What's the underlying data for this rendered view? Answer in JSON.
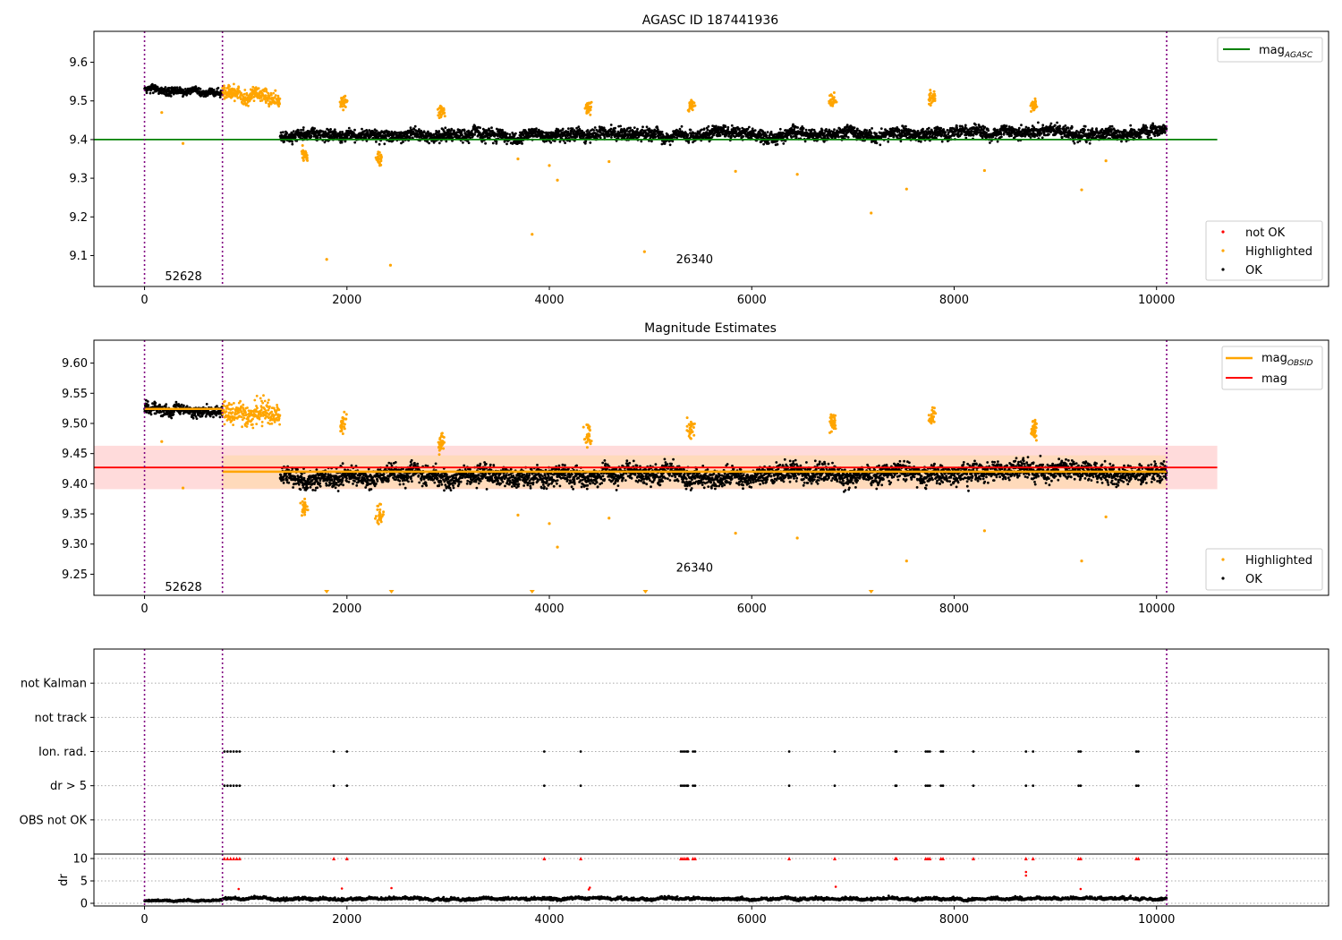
{
  "figure": {
    "colors": {
      "ok": "#000000",
      "highlighted": "#ffa500",
      "not_ok": "#ff0000",
      "agasc_line": "#008000",
      "obsid_line": "#ffa500",
      "mag_line": "#ff0000",
      "obs_boundary": "#800080",
      "mag_band": "#ffcccc",
      "obsid_band": "#ffd9b3",
      "grid": "#aaaaaa"
    }
  },
  "chart_data": [
    {
      "type": "scatter",
      "title": "AGASC ID 187441936",
      "xlim": [
        -500,
        11700
      ],
      "ylim": [
        9.02,
        9.68
      ],
      "xticks": [
        0,
        2000,
        4000,
        6000,
        8000,
        10000
      ],
      "xtick_labels": [
        "0",
        "2000",
        "4000",
        "6000",
        "8000",
        "10000"
      ],
      "yticks": [
        9.1,
        9.2,
        9.3,
        9.4,
        9.5,
        9.6
      ],
      "ytick_labels": [
        "9.1",
        "9.2",
        "9.3",
        "9.4",
        "9.5",
        "9.6"
      ],
      "obs_boundaries": [
        0,
        770,
        10100
      ],
      "obs_labels": [
        {
          "text": "52628",
          "x": 385,
          "y": 9.045
        },
        {
          "text": "26340",
          "x": 5435,
          "y": 9.09
        }
      ],
      "lines": [
        {
          "name": "mag_AGASC",
          "y": 9.4,
          "x": [
            -500,
            10600
          ]
        }
      ],
      "series": [
        {
          "name": "OK",
          "segments": [
            {
              "x": [
                0,
                770
              ],
              "y_start": 9.53,
              "y_end": 9.52,
              "spread": 0.012
            },
            {
              "x": [
                1340,
                10100
              ],
              "y_start": 9.41,
              "y_end": 9.42,
              "spread": 0.02
            }
          ]
        },
        {
          "name": "Highlighted",
          "segments": [
            {
              "x": [
                770,
                1340
              ],
              "y_start": 9.52,
              "y_end": 9.51,
              "spread": 0.025
            }
          ]
        },
        {
          "name": "not OK",
          "segments": []
        }
      ],
      "highlighted_clusters": [
        {
          "x": 1580,
          "y": 9.36
        },
        {
          "x": 1960,
          "y": 9.5
        },
        {
          "x": 2320,
          "y": 9.35
        },
        {
          "x": 2930,
          "y": 9.47
        },
        {
          "x": 4380,
          "y": 9.48
        },
        {
          "x": 5400,
          "y": 9.49
        },
        {
          "x": 6800,
          "y": 9.5
        },
        {
          "x": 7780,
          "y": 9.51
        },
        {
          "x": 8790,
          "y": 9.49
        }
      ],
      "highlighted_outliers": [
        {
          "x": 1800,
          "y": 9.09
        },
        {
          "x": 2430,
          "y": 9.075
        },
        {
          "x": 3830,
          "y": 9.155
        },
        {
          "x": 4940,
          "y": 9.11
        },
        {
          "x": 7180,
          "y": 9.21
        },
        {
          "x": 7530,
          "y": 9.272
        },
        {
          "x": 9260,
          "y": 9.27
        },
        {
          "x": 4080,
          "y": 9.295
        },
        {
          "x": 8300,
          "y": 9.32
        },
        {
          "x": 5840,
          "y": 9.318
        },
        {
          "x": 6450,
          "y": 9.31
        },
        {
          "x": 9500,
          "y": 9.345
        },
        {
          "x": 170,
          "y": 9.47
        },
        {
          "x": 380,
          "y": 9.39
        },
        {
          "x": 4590,
          "y": 9.343
        },
        {
          "x": 3690,
          "y": 9.35
        },
        {
          "x": 4000,
          "y": 9.333
        }
      ],
      "legend_lines": [
        "mag_AGASC"
      ],
      "legend_lines_base": "mag",
      "legend_lines_sub": "AGASC",
      "legend_points": [
        "not OK",
        "Highlighted",
        "OK"
      ]
    },
    {
      "type": "scatter",
      "title": "Magnitude Estimates",
      "xlim": [
        -500,
        11700
      ],
      "ylim": [
        9.215,
        9.638
      ],
      "xticks": [
        0,
        2000,
        4000,
        6000,
        8000,
        10000
      ],
      "xtick_labels": [
        "0",
        "2000",
        "4000",
        "6000",
        "8000",
        "10000"
      ],
      "yticks": [
        9.25,
        9.3,
        9.35,
        9.4,
        9.45,
        9.5,
        9.55,
        9.6
      ],
      "ytick_labels": [
        "9.25",
        "9.30",
        "9.35",
        "9.40",
        "9.45",
        "9.50",
        "9.55",
        "9.60"
      ],
      "obs_boundaries": [
        0,
        770,
        10100
      ],
      "obs_labels": [
        {
          "text": "52628",
          "x": 385,
          "y": 9.228
        },
        {
          "text": "26340",
          "x": 5435,
          "y": 9.26
        }
      ],
      "mag_band": {
        "x": [
          -500,
          10600
        ],
        "y": [
          9.391,
          9.463
        ]
      },
      "obsid_bands": [
        {
          "x": [
            770,
            10100
          ],
          "y": [
            9.392,
            9.447
          ]
        }
      ],
      "lines": [
        {
          "name": "mag",
          "y": 9.427,
          "x": [
            -500,
            10600
          ]
        },
        {
          "name": "mag_OBSID",
          "y": 9.524,
          "x": [
            0,
            770
          ]
        },
        {
          "name": "mag_OBSID",
          "y": 9.42,
          "x": [
            770,
            10100
          ]
        }
      ],
      "series": [
        {
          "name": "OK",
          "segments": [
            {
              "x": [
                0,
                770
              ],
              "y_start": 9.525,
              "y_end": 9.52,
              "spread": 0.012
            },
            {
              "x": [
                1340,
                10100
              ],
              "y_start": 9.41,
              "y_end": 9.42,
              "spread": 0.02
            }
          ]
        },
        {
          "name": "Highlighted",
          "segments": [
            {
              "x": [
                770,
                1340
              ],
              "y_start": 9.52,
              "y_end": 9.51,
              "spread": 0.025
            }
          ]
        }
      ],
      "highlighted_clusters": [
        {
          "x": 1580,
          "y": 9.36
        },
        {
          "x": 1960,
          "y": 9.5
        },
        {
          "x": 2320,
          "y": 9.35
        },
        {
          "x": 2930,
          "y": 9.47
        },
        {
          "x": 4380,
          "y": 9.48
        },
        {
          "x": 5400,
          "y": 9.49
        },
        {
          "x": 6800,
          "y": 9.5
        },
        {
          "x": 7780,
          "y": 9.51
        },
        {
          "x": 8790,
          "y": 9.49
        }
      ],
      "highlighted_outliers": [
        {
          "x": 7530,
          "y": 9.272
        },
        {
          "x": 9260,
          "y": 9.272
        },
        {
          "x": 4080,
          "y": 9.295
        },
        {
          "x": 8300,
          "y": 9.322
        },
        {
          "x": 5840,
          "y": 9.318
        },
        {
          "x": 6450,
          "y": 9.31
        },
        {
          "x": 9500,
          "y": 9.345
        },
        {
          "x": 170,
          "y": 9.47
        },
        {
          "x": 380,
          "y": 9.393
        },
        {
          "x": 4590,
          "y": 9.343
        },
        {
          "x": 3690,
          "y": 9.348
        },
        {
          "x": 4000,
          "y": 9.334
        }
      ],
      "clipped_markers_x": [
        1800,
        2440,
        3830,
        4950,
        7180
      ],
      "legend_lines": [
        "mag_OBSID",
        "mag"
      ],
      "legend_lines_base": [
        "mag",
        "mag"
      ],
      "legend_lines_sub": [
        "OBSID",
        ""
      ],
      "legend_points": [
        "Highlighted",
        "OK"
      ]
    },
    {
      "type": "scatter",
      "title": "",
      "xlim": [
        -500,
        11700
      ],
      "categories": [
        "not Kalman",
        "not track",
        "Ion. rad.",
        "dr > 5",
        "OBS not OK"
      ],
      "obs_boundaries": [
        0,
        770,
        10100
      ],
      "flag_x": {
        "Ion. rad.": [
          790,
          820,
          850,
          880,
          910,
          940,
          1870,
          2000,
          3950,
          4310,
          5300,
          5320,
          5340,
          5360,
          5370,
          5420,
          5440,
          6370,
          6820,
          7420,
          7430,
          7720,
          7740,
          7760,
          7870,
          7890,
          8190,
          8710,
          8780,
          9230,
          9250,
          9800,
          9820
        ],
        "dr > 5": [
          790,
          820,
          850,
          880,
          910,
          940,
          1870,
          2000,
          3950,
          4310,
          5300,
          5320,
          5340,
          5360,
          5370,
          5420,
          5440,
          6370,
          6820,
          7420,
          7430,
          7720,
          7740,
          7760,
          7870,
          7890,
          8190,
          8710,
          8780,
          9230,
          9250,
          9800,
          9820
        ]
      },
      "dr_panel": {
        "ylabel": "dr",
        "ylim": [
          -0.6,
          11
        ],
        "yticks": [
          0,
          5,
          10
        ],
        "ytick_labels": [
          "0",
          "5",
          "10"
        ],
        "baseline_mean": 0.8,
        "saturated_value": 10,
        "not_ok_points": [
          {
            "x": 930,
            "y": 3.2
          },
          {
            "x": 1950,
            "y": 3.3
          },
          {
            "x": 2440,
            "y": 3.4
          },
          {
            "x": 4390,
            "y": 3.1
          },
          {
            "x": 4400,
            "y": 3.5
          },
          {
            "x": 6830,
            "y": 3.7
          },
          {
            "x": 8710,
            "y": 6.2
          },
          {
            "x": 8710,
            "y": 7.0
          },
          {
            "x": 9250,
            "y": 3.2
          }
        ]
      }
    }
  ]
}
